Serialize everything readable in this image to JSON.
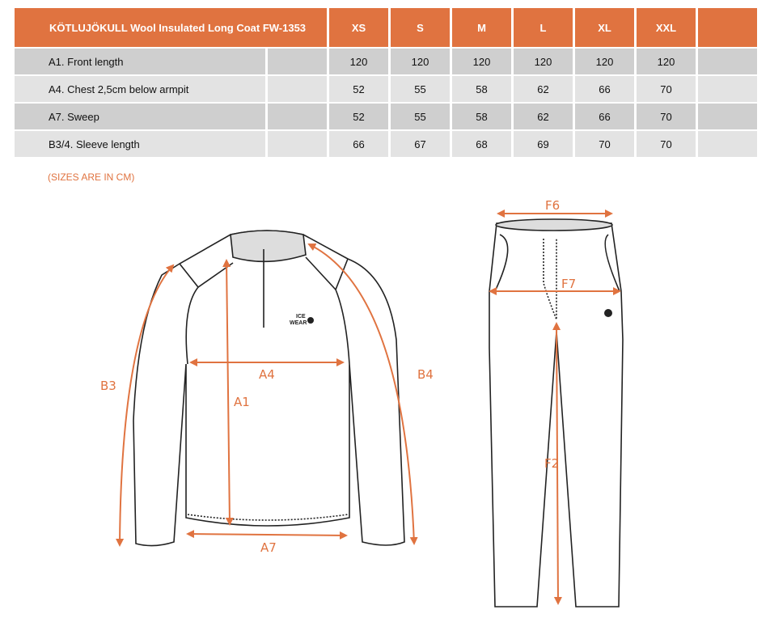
{
  "table": {
    "title": "KÖTLUJÖKULL Wool Insulated Long Coat  FW-1353",
    "sizes": [
      "XS",
      "S",
      "M",
      "L",
      "XL",
      "XXL"
    ],
    "rows": [
      {
        "label": "A1. Front length",
        "values": [
          "120",
          "120",
          "120",
          "120",
          "120",
          "120"
        ]
      },
      {
        "label": "A4. Chest 2,5cm below armpit",
        "values": [
          "52",
          "55",
          "58",
          "62",
          "66",
          "70"
        ]
      },
      {
        "label": "A7. Sweep",
        "values": [
          "52",
          "55",
          "58",
          "62",
          "66",
          "70"
        ]
      },
      {
        "label": "B3/4. Sleeve length",
        "values": [
          "66",
          "67",
          "68",
          "69",
          "70",
          "70"
        ]
      }
    ]
  },
  "note": "(SIZES ARE IN CM)",
  "diagram": {
    "labels": {
      "a1": "A1",
      "a4": "A4",
      "a7": "A7",
      "b3": "B3",
      "b4": "B4",
      "f6": "F6",
      "f7": "F7",
      "f2": "F2"
    },
    "logo_text": [
      "ICE",
      "WEAR"
    ]
  },
  "colors": {
    "accent": "#e07340",
    "row_dark": "#cfcfcf",
    "row_light": "#e3e3e3"
  }
}
